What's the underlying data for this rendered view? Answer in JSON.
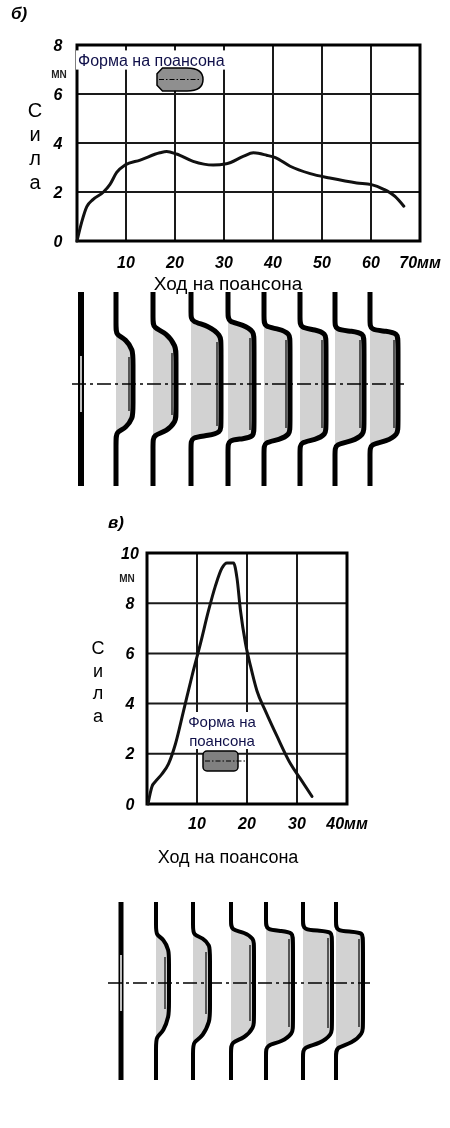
{
  "chart_data": [
    {
      "type": "line",
      "title": "б)",
      "xlabel": "Ход на поансона",
      "ylabel": "Сила",
      "annotations": [
        "MN",
        "Форма на поансона"
      ],
      "x": [
        0,
        1,
        2,
        3.3,
        5.4,
        6.7,
        8.1,
        9.8,
        12.9,
        16.9,
        18.3,
        20.3,
        23.7,
        27.8,
        30.5,
        33.9,
        36,
        38.7,
        40.5,
        43.5,
        47.6,
        51.6,
        57.1,
        60.1,
        62.5,
        64.9,
        66.7
      ],
      "series": [
        {
          "color": "#111111",
          "values": [
            0,
            0.8,
            1.4,
            1.7,
            2,
            2.3,
            2.8,
            3.1,
            3.3,
            3.6,
            3.65,
            3.55,
            3.25,
            3.1,
            3.15,
            3.45,
            3.6,
            3.5,
            3.4,
            3.05,
            2.75,
            2.57,
            2.37,
            2.3,
            2.12,
            1.82,
            1.42
          ]
        }
      ],
      "xlim": [
        0,
        70
      ],
      "ylim": [
        0,
        8
      ],
      "xticks": [
        10,
        20,
        30,
        40,
        50,
        60,
        {
          "value": 70,
          "label": "70мм"
        }
      ],
      "yticks": [
        0,
        2,
        4,
        6,
        8
      ],
      "grid": true
    },
    {
      "type": "line",
      "title": "в)",
      "xlabel": "Ход на поансона",
      "ylabel": "Сила",
      "annotations": [
        "MN",
        "Форма на поансона"
      ],
      "x": [
        0.2,
        1,
        1.7,
        3,
        4.3,
        5.7,
        7.3,
        9,
        10.7,
        12.3,
        13.7,
        15,
        16,
        17.3,
        18,
        18.7,
        19.7,
        20.7,
        22,
        23.7,
        26,
        28.7,
        30.7,
        33
      ],
      "series": [
        {
          "color": "#111111",
          "values": [
            0,
            0.7,
            0.9,
            1.2,
            1.6,
            2.4,
            3.7,
            5.1,
            6.4,
            7.7,
            8.7,
            9.4,
            9.6,
            9.6,
            9,
            7.7,
            6.4,
            5.5,
            4.5,
            3.7,
            2.7,
            1.6,
            1,
            0.3
          ]
        }
      ],
      "xlim": [
        0,
        40
      ],
      "ylim": [
        0,
        10
      ],
      "xticks": [
        10,
        20,
        30,
        {
          "value": 40,
          "label": "40мм"
        }
      ],
      "yticks": [
        0,
        2,
        4,
        6,
        8,
        10
      ],
      "grid": true
    }
  ]
}
